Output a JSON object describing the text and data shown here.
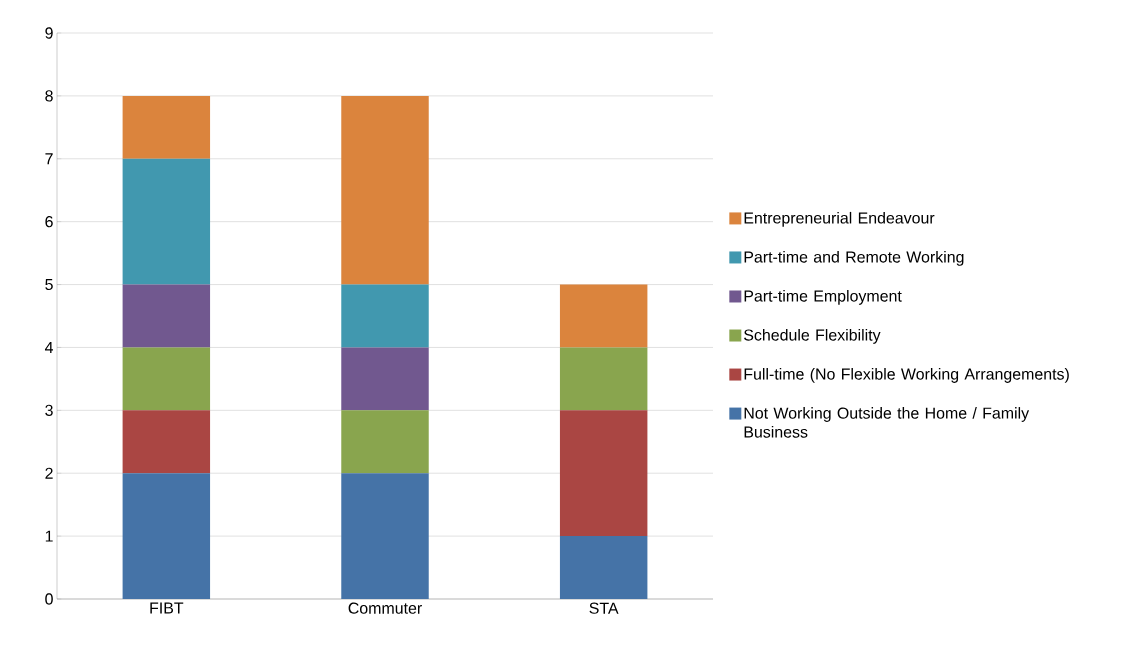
{
  "chart_data": {
    "type": "bar",
    "stacked": true,
    "categories": [
      "FIBT",
      "Commuter",
      "STA"
    ],
    "series": [
      {
        "name": "Not Working Outside the Home / Family Business",
        "color": "#4573a7",
        "values": [
          2,
          2,
          1
        ]
      },
      {
        "name": "Full-time (No Flexible Working Arrangements)",
        "color": "#aa4643",
        "values": [
          1,
          0,
          2
        ]
      },
      {
        "name": "Schedule Flexibility",
        "color": "#89a54e",
        "values": [
          1,
          1,
          1
        ]
      },
      {
        "name": "Part-time Employment",
        "color": "#71588f",
        "values": [
          1,
          1,
          0
        ]
      },
      {
        "name": "Part-time and Remote Working",
        "color": "#4198af",
        "values": [
          2,
          1,
          0
        ]
      },
      {
        "name": "Entrepreneurial Endeavour",
        "color": "#db843d",
        "values": [
          1,
          3,
          1
        ]
      }
    ],
    "ylim": [
      0,
      9
    ],
    "yticks": [
      0,
      1,
      2,
      3,
      4,
      5,
      6,
      7,
      8,
      9
    ],
    "grid": "y",
    "legend": "right"
  }
}
